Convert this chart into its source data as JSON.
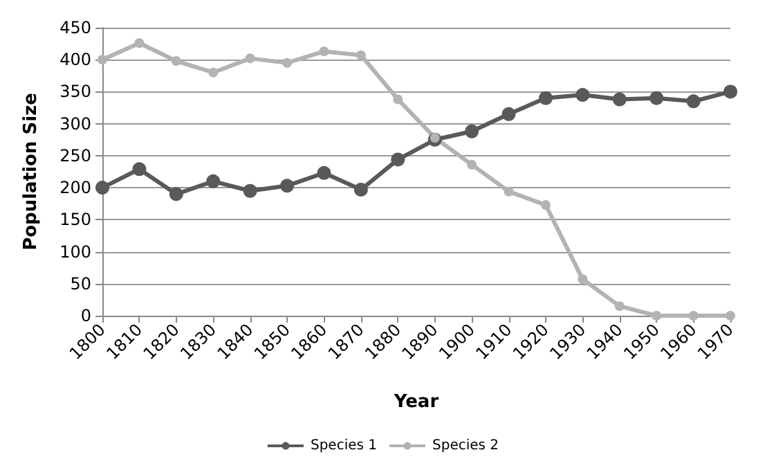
{
  "chart_data": {
    "type": "line",
    "xlabel": "Year",
    "ylabel": "Population Size",
    "categories": [
      "1800",
      "1810",
      "1820",
      "1830",
      "1840",
      "1850",
      "1860",
      "1870",
      "1880",
      "1890",
      "1900",
      "1910",
      "1920",
      "1930",
      "1940",
      "1950",
      "1960",
      "1970"
    ],
    "series": [
      {
        "name": "Species 1",
        "color": "#595959",
        "values": [
          200,
          229,
          190,
          210,
          195,
          203,
          223,
          197,
          244,
          275,
          288,
          315,
          340,
          345,
          338,
          340,
          335,
          350
        ]
      },
      {
        "name": "Species 2",
        "color": "#b3b3b3",
        "values": [
          400,
          426,
          398,
          380,
          402,
          395,
          413,
          407,
          338,
          278,
          236,
          194,
          173,
          57,
          15,
          0,
          0,
          0
        ]
      }
    ],
    "ylim": [
      0,
      450
    ],
    "yticks": [
      0,
      50,
      100,
      150,
      200,
      250,
      300,
      350,
      400,
      450
    ],
    "grid": "y",
    "legend": "bottom",
    "marker": "circle",
    "line_style": "solid"
  }
}
